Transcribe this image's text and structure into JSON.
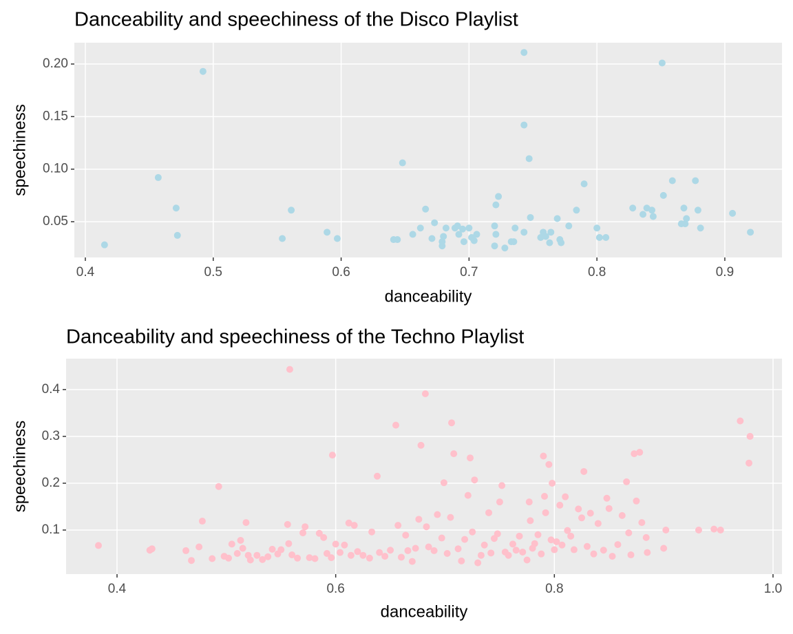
{
  "chart_data": [
    {
      "type": "scatter",
      "title": "Danceability and speechiness of the Disco Playlist",
      "x_label": "danceability",
      "y_label": "speechiness",
      "color": "#add8e6",
      "x": [
        0.415,
        0.457,
        0.471,
        0.472,
        0.492,
        0.554,
        0.561,
        0.589,
        0.597,
        0.641,
        0.644,
        0.648,
        0.656,
        0.662,
        0.666,
        0.671,
        0.673,
        0.679,
        0.68,
        0.682,
        0.679,
        0.689,
        0.691,
        0.692,
        0.695,
        0.696,
        0.7,
        0.702,
        0.704,
        0.706,
        0.72,
        0.72,
        0.721,
        0.721,
        0.723,
        0.728,
        0.733,
        0.735,
        0.736,
        0.743,
        0.743,
        0.743,
        0.747,
        0.748,
        0.756,
        0.758,
        0.76,
        0.763,
        0.764,
        0.769,
        0.771,
        0.772,
        0.79,
        0.778,
        0.784,
        0.8,
        0.802,
        0.807,
        0.828,
        0.836,
        0.839,
        0.843,
        0.844,
        0.851,
        0.852,
        0.859,
        0.866,
        0.868,
        0.869,
        0.87,
        0.877,
        0.879,
        0.881,
        0.906,
        0.92
      ],
      "values": [
        0.028,
        0.092,
        0.063,
        0.037,
        0.193,
        0.034,
        0.061,
        0.04,
        0.034,
        0.033,
        0.033,
        0.106,
        0.038,
        0.044,
        0.062,
        0.034,
        0.049,
        0.027,
        0.036,
        0.044,
        0.031,
        0.044,
        0.046,
        0.038,
        0.043,
        0.031,
        0.044,
        0.035,
        0.032,
        0.038,
        0.046,
        0.027,
        0.066,
        0.038,
        0.074,
        0.025,
        0.031,
        0.031,
        0.044,
        0.211,
        0.142,
        0.04,
        0.11,
        0.054,
        0.035,
        0.04,
        0.036,
        0.03,
        0.04,
        0.053,
        0.033,
        0.03,
        0.086,
        0.046,
        0.061,
        0.044,
        0.035,
        0.035,
        0.063,
        0.057,
        0.063,
        0.061,
        0.055,
        0.201,
        0.075,
        0.089,
        0.048,
        0.063,
        0.048,
        0.053,
        0.089,
        0.061,
        0.044,
        0.058,
        0.04
      ],
      "xlim": [
        0.3914,
        0.9447
      ],
      "ylim": [
        0.016,
        0.2203
      ],
      "xticks": [
        0.4,
        0.5,
        0.6,
        0.7,
        0.8,
        0.9
      ],
      "yticks": [
        0.05,
        {
          "value": 0.1,
          "label": "0.10"
        },
        0.15,
        {
          "value": 0.2,
          "label": "0.20"
        }
      ]
    },
    {
      "type": "scatter",
      "title": "Danceability and speechiness of the Techno Playlist",
      "x_label": "danceability",
      "y_label": "speechiness",
      "color": "#ffc0cb",
      "x": [
        0.383,
        0.43,
        0.432,
        0.463,
        0.468,
        0.475,
        0.478,
        0.487,
        0.493,
        0.498,
        0.502,
        0.505,
        0.51,
        0.513,
        0.515,
        0.518,
        0.52,
        0.522,
        0.528,
        0.533,
        0.538,
        0.542,
        0.547,
        0.55,
        0.556,
        0.557,
        0.558,
        0.56,
        0.565,
        0.57,
        0.572,
        0.576,
        0.581,
        0.585,
        0.589,
        0.592,
        0.596,
        0.597,
        0.6,
        0.604,
        0.608,
        0.612,
        0.614,
        0.617,
        0.62,
        0.625,
        0.631,
        0.633,
        0.638,
        0.64,
        0.645,
        0.65,
        0.655,
        0.657,
        0.66,
        0.664,
        0.666,
        0.67,
        0.673,
        0.676,
        0.678,
        0.682,
        0.683,
        0.685,
        0.69,
        0.693,
        0.697,
        0.699,
        0.702,
        0.705,
        0.706,
        0.708,
        0.712,
        0.715,
        0.718,
        0.721,
        0.723,
        0.725,
        0.727,
        0.73,
        0.733,
        0.736,
        0.74,
        0.742,
        0.745,
        0.748,
        0.75,
        0.752,
        0.755,
        0.758,
        0.762,
        0.765,
        0.768,
        0.771,
        0.775,
        0.777,
        0.778,
        0.78,
        0.782,
        0.785,
        0.788,
        0.79,
        0.791,
        0.792,
        0.795,
        0.797,
        0.798,
        0.8,
        0.802,
        0.805,
        0.807,
        0.81,
        0.812,
        0.815,
        0.818,
        0.822,
        0.825,
        0.827,
        0.83,
        0.833,
        0.836,
        0.84,
        0.845,
        0.848,
        0.85,
        0.853,
        0.858,
        0.862,
        0.866,
        0.868,
        0.87,
        0.873,
        0.875,
        0.878,
        0.88,
        0.884,
        0.885,
        0.9,
        0.902,
        0.932,
        0.946,
        0.952,
        0.97,
        0.978,
        0.979
      ],
      "values": [
        0.067,
        0.057,
        0.06,
        0.056,
        0.035,
        0.064,
        0.119,
        0.039,
        0.193,
        0.044,
        0.04,
        0.07,
        0.05,
        0.078,
        0.061,
        0.116,
        0.046,
        0.036,
        0.046,
        0.037,
        0.043,
        0.059,
        0.049,
        0.058,
        0.112,
        0.071,
        0.443,
        0.047,
        0.04,
        0.094,
        0.107,
        0.041,
        0.039,
        0.093,
        0.084,
        0.05,
        0.041,
        0.26,
        0.07,
        0.052,
        0.068,
        0.115,
        0.046,
        0.11,
        0.054,
        0.046,
        0.04,
        0.096,
        0.215,
        0.052,
        0.044,
        0.057,
        0.324,
        0.11,
        0.042,
        0.089,
        0.056,
        0.033,
        0.061,
        0.123,
        0.281,
        0.391,
        0.107,
        0.064,
        0.056,
        0.133,
        0.083,
        0.201,
        0.05,
        0.127,
        0.329,
        0.263,
        0.06,
        0.034,
        0.08,
        0.174,
        0.254,
        0.096,
        0.207,
        0.03,
        0.046,
        0.068,
        0.137,
        0.051,
        0.082,
        0.092,
        0.16,
        0.195,
        0.053,
        0.046,
        0.07,
        0.057,
        0.087,
        0.053,
        0.036,
        0.16,
        0.12,
        0.061,
        0.071,
        0.09,
        0.049,
        0.258,
        0.172,
        0.137,
        0.24,
        0.079,
        0.2,
        0.058,
        0.075,
        0.153,
        0.068,
        0.171,
        0.099,
        0.087,
        0.058,
        0.145,
        0.126,
        0.225,
        0.065,
        0.136,
        0.049,
        0.114,
        0.057,
        0.168,
        0.146,
        0.044,
        0.069,
        0.131,
        0.203,
        0.094,
        0.047,
        0.263,
        0.162,
        0.266,
        0.116,
        0.084,
        0.052,
        0.061,
        0.1,
        0.1,
        0.102,
        0.1,
        0.333,
        0.243,
        0.3
      ],
      "xlim": [
        0.3534,
        1.0082
      ],
      "ylim": [
        0.0059,
        0.466
      ],
      "xticks": [
        0.4,
        0.6,
        0.8,
        {
          "value": 1,
          "label": "1.0"
        }
      ],
      "yticks": [
        0.1,
        0.2,
        0.3,
        0.4
      ]
    }
  ]
}
